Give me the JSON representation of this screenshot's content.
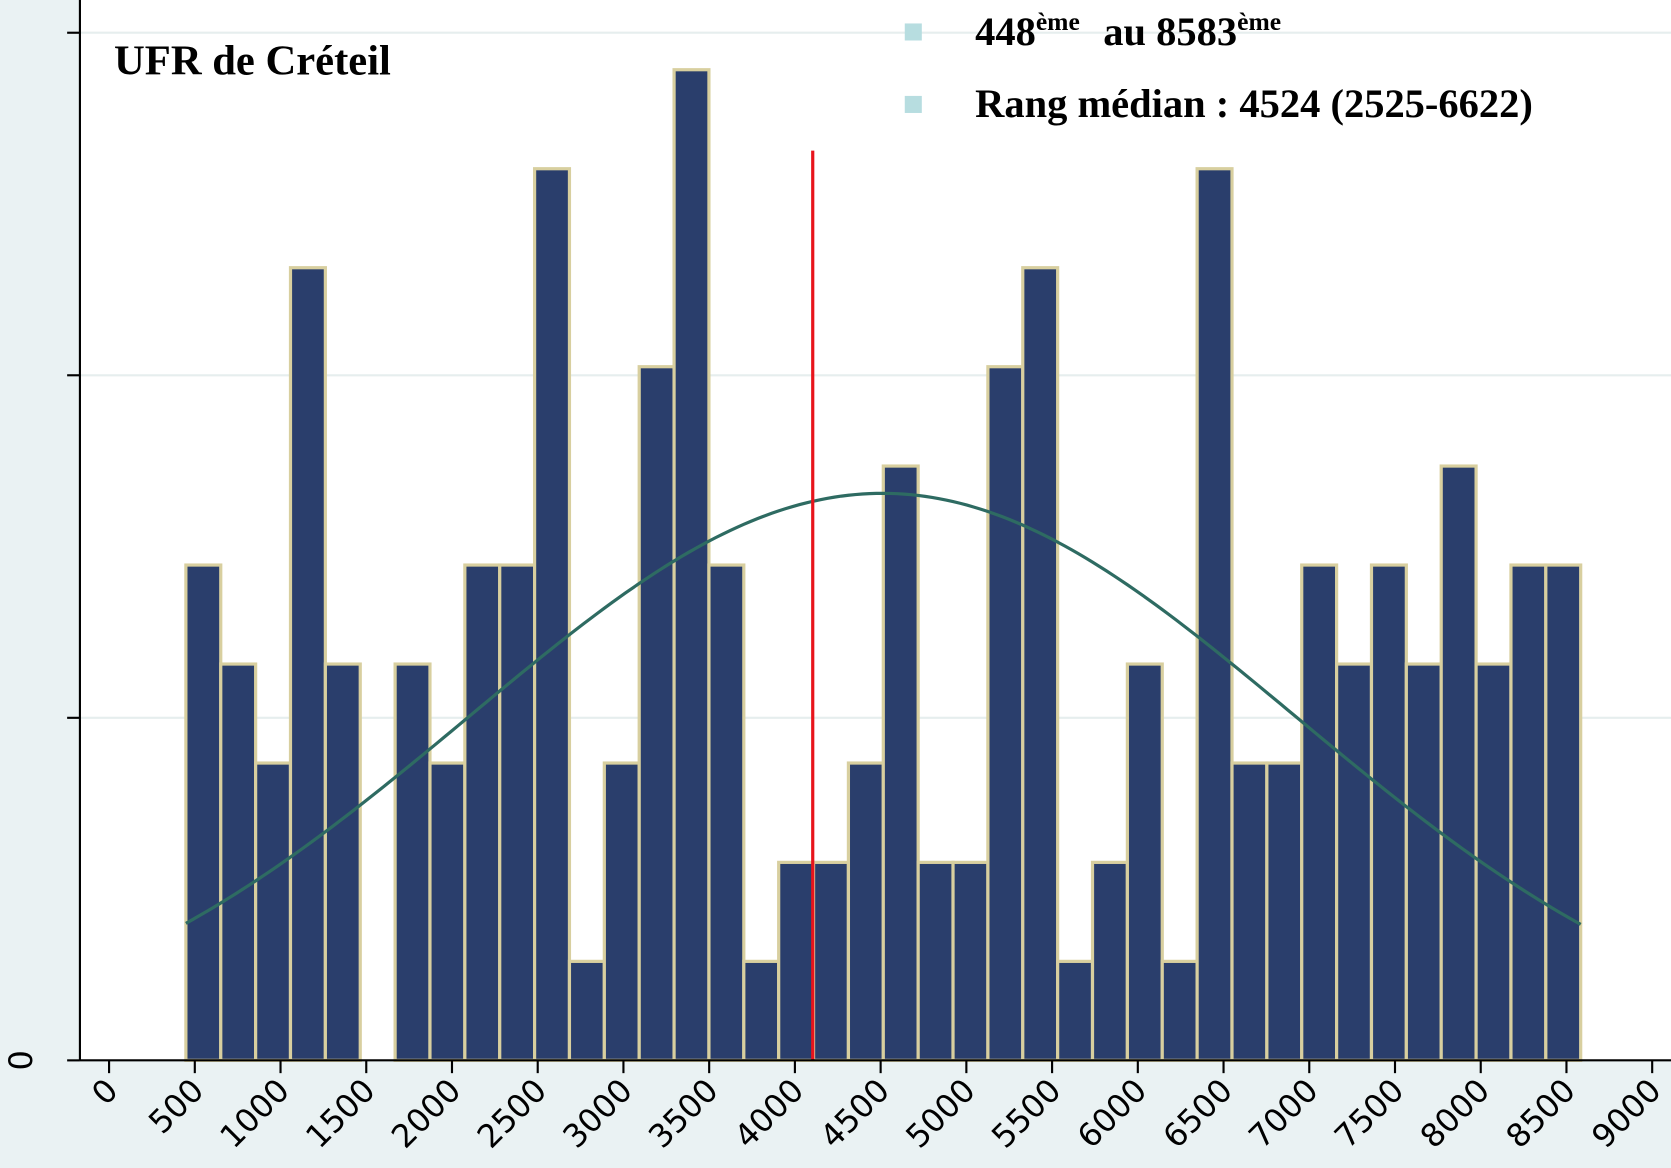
{
  "chart_data": {
    "type": "histogram",
    "title": "UFR de Créteil",
    "bins": [
      448,
      651.4,
      854.8,
      1058.1,
      1261.5,
      1464.9,
      1668.3,
      1871.6,
      2075,
      2278.4,
      2481.8,
      2685.1,
      2888.5,
      3091.9,
      3295.3,
      3498.6,
      3702,
      3905.4,
      4108.8,
      4312.1,
      4515.5,
      4718.9,
      4922.3,
      5125.6,
      5329,
      5532.4,
      5735.8,
      5939.1,
      6142.5,
      6345.9,
      6549.3,
      6752.6,
      6956,
      7159.4,
      7362.8,
      7566.1,
      7769.5,
      7972.9,
      8176.3,
      8379.6,
      8583
    ],
    "values": [
      0.0001446,
      0.0001157,
      8.68e-05,
      0.0002314,
      0.0001157,
      0,
      0.0001157,
      8.68e-05,
      0.0001446,
      0.0001446,
      0.0002603,
      2.89e-05,
      8.68e-05,
      0.0002025,
      0.0002892,
      0.0001446,
      2.89e-05,
      5.78e-05,
      5.78e-05,
      8.68e-05,
      0.0001735,
      5.78e-05,
      5.78e-05,
      0.0002025,
      0.0002314,
      2.89e-05,
      5.78e-05,
      0.0001157,
      2.89e-05,
      0.0002603,
      8.68e-05,
      8.68e-05,
      0.0001446,
      0.0001157,
      0.0001446,
      0.0001157,
      0.0001735,
      0.0001157,
      0.0001446,
      0.0001446
    ],
    "color": "#2a3e6c",
    "edge_color": "#d8cf9f",
    "normal_curve": {
      "mean": 4510,
      "sd": 2410,
      "color": "#2e6b62"
    },
    "reference_line": {
      "x": 4104,
      "y_top": 0.0002656,
      "color": "#e8141c"
    },
    "xlim": [
      -170,
      9060
    ],
    "xticks": [
      0,
      500,
      1000,
      1500,
      2000,
      2500,
      3000,
      3500,
      4000,
      4500,
      5000,
      5500,
      6000,
      6500,
      7000,
      7500,
      8000,
      8500,
      9000
    ],
    "ylim": [
      0,
      0.000308
    ],
    "yticks": [
      0
    ],
    "ygrid": [
      0.0001,
      0.0002,
      0.0003
    ],
    "grid": true,
    "legend": [
      {
        "parts": [
          "448",
          "ème",
          "au 8583",
          "ème"
        ],
        "color": "#b7dde0"
      },
      {
        "parts": [
          "Rang médian : 4524 (2525-6622)"
        ],
        "color": "#b7dde0"
      }
    ]
  }
}
